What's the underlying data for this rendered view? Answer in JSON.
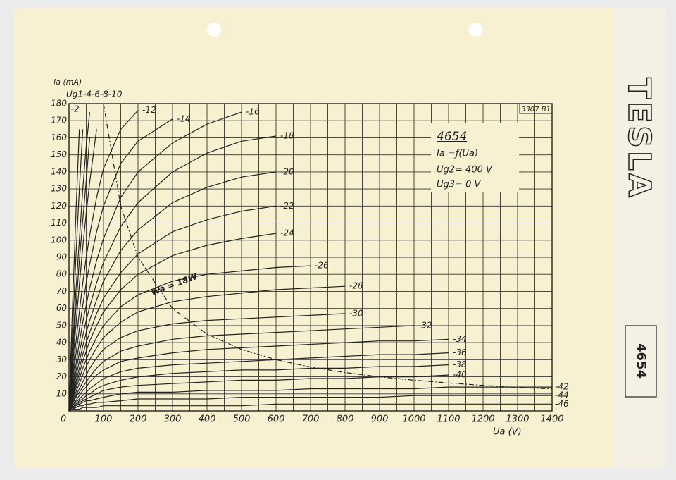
{
  "chart_data": {
    "type": "line",
    "y_label": "Ia (mA)",
    "x_label": "Ua (V)",
    "group_label": "Ug1-4-6-8-10",
    "box": {
      "title": "4654",
      "line1": "Ia =ƒ(Ua)",
      "line2": "Ug2= 400 V",
      "line3": "Ug3= 0 V"
    },
    "code": "3307 B1",
    "x": [
      0,
      10,
      20,
      30,
      40,
      50,
      60,
      80,
      100,
      150,
      200,
      300,
      400,
      500,
      600,
      700,
      800,
      900,
      1000,
      1100,
      1200,
      1300,
      1400
    ],
    "xlim": [
      0,
      1400
    ],
    "ylim": [
      0,
      180
    ],
    "xticks": [
      0,
      100,
      200,
      300,
      400,
      500,
      600,
      700,
      800,
      900,
      1000,
      1100,
      1200,
      1300,
      1400
    ],
    "xgrid_minor": [
      50,
      150,
      250,
      350,
      450,
      550,
      650,
      750,
      850,
      950,
      1050,
      1150,
      1250,
      1350
    ],
    "yticks": [
      10,
      20,
      30,
      40,
      50,
      60,
      70,
      80,
      90,
      100,
      110,
      120,
      130,
      140,
      150,
      160,
      170,
      180
    ],
    "grid": true,
    "color": "#222",
    "series": [
      {
        "name": "-2",
        "values": [
          0,
          60,
          115,
          165,
          null,
          null,
          null,
          null,
          null,
          null,
          null,
          null,
          null,
          null,
          null,
          null,
          null,
          null,
          null,
          null,
          null,
          null,
          null
        ]
      },
      {
        "values": [
          0,
          45,
          90,
          130,
          165,
          null,
          null,
          null,
          null,
          null,
          null,
          null,
          null,
          null,
          null,
          null,
          null,
          null,
          null,
          null,
          null,
          null,
          null
        ]
      },
      {
        "values": [
          0,
          35,
          70,
          100,
          130,
          155,
          175,
          null,
          null,
          null,
          null,
          null,
          null,
          null,
          null,
          null,
          null,
          null,
          null,
          null,
          null,
          null,
          null
        ]
      },
      {
        "values": [
          0,
          30,
          60,
          88,
          112,
          135,
          160,
          null,
          null,
          null,
          null,
          null,
          null,
          null,
          null,
          null,
          null,
          null,
          null,
          null,
          null,
          null,
          null
        ]
      },
      {
        "values": [
          0,
          25,
          50,
          74,
          96,
          116,
          134,
          165,
          null,
          null,
          null,
          null,
          null,
          null,
          null,
          null,
          null,
          null,
          null,
          null,
          null,
          null,
          null
        ]
      },
      {
        "name": "-12",
        "values": [
          0,
          20,
          40,
          58,
          75,
          90,
          103,
          125,
          142,
          165,
          176,
          null,
          null,
          null,
          null,
          null,
          null,
          null,
          null,
          null,
          null,
          null,
          null
        ]
      },
      {
        "name": "-14",
        "values": [
          0,
          17,
          33,
          48,
          62,
          75,
          86,
          105,
          120,
          145,
          158,
          171,
          null,
          null,
          null,
          null,
          null,
          null,
          null,
          null,
          null,
          null,
          null
        ]
      },
      {
        "name": "-16",
        "values": [
          0,
          14,
          27,
          40,
          52,
          62,
          72,
          88,
          101,
          125,
          140,
          157,
          168,
          175,
          null,
          null,
          null,
          null,
          null,
          null,
          null,
          null,
          null
        ]
      },
      {
        "name": "-18",
        "values": [
          0,
          12,
          23,
          34,
          44,
          53,
          61,
          75,
          87,
          108,
          122,
          140,
          151,
          158,
          161,
          null,
          null,
          null,
          null,
          null,
          null,
          null,
          null
        ]
      },
      {
        "name": "-20",
        "values": [
          0,
          10,
          20,
          29,
          38,
          46,
          53,
          65,
          76,
          94,
          106,
          122,
          131,
          137,
          140,
          null,
          null,
          null,
          null,
          null,
          null,
          null,
          null
        ]
      },
      {
        "name": "-22",
        "values": [
          0,
          9,
          17,
          25,
          33,
          40,
          46,
          57,
          66,
          81,
          92,
          105,
          112,
          117,
          120,
          null,
          null,
          null,
          null,
          null,
          null,
          null,
          null
        ]
      },
      {
        "name": "-24",
        "values": [
          0,
          8,
          15,
          22,
          29,
          35,
          41,
          50,
          58,
          71,
          80,
          91,
          97,
          101,
          104,
          null,
          null,
          null,
          null,
          null,
          null,
          null,
          null
        ]
      },
      {
        "name": "-26",
        "values": [
          0,
          7,
          13,
          19,
          25,
          30,
          35,
          43,
          50,
          61,
          68,
          76,
          80,
          82,
          84,
          85,
          null,
          null,
          null,
          null,
          null,
          null,
          null
        ]
      },
      {
        "name": "-28",
        "values": [
          0,
          6,
          11,
          16,
          21,
          26,
          30,
          37,
          43,
          52,
          58,
          64,
          67,
          69,
          71,
          72,
          73,
          null,
          null,
          null,
          null,
          null,
          null
        ]
      },
      {
        "name": "-30",
        "values": [
          0,
          5,
          9,
          13,
          17,
          21,
          25,
          31,
          36,
          43,
          47,
          51,
          53,
          54,
          55,
          56,
          57,
          null,
          null,
          null,
          null,
          null,
          null
        ]
      },
      {
        "name": "-32",
        "values": [
          0,
          4,
          8,
          11,
          14,
          17,
          20,
          25,
          29,
          35,
          38,
          42,
          44,
          45,
          46,
          47,
          48,
          49,
          50,
          null,
          null,
          null,
          null
        ]
      },
      {
        "name": "-34",
        "values": [
          0,
          3,
          6,
          9,
          12,
          14,
          17,
          21,
          24,
          29,
          31,
          34,
          36,
          37,
          38,
          39,
          40,
          41,
          41,
          42,
          null,
          null,
          null
        ]
      },
      {
        "name": "-36",
        "values": [
          0,
          3,
          5,
          7,
          9,
          11,
          13,
          16,
          19,
          23,
          25,
          27,
          28,
          29,
          30,
          31,
          32,
          33,
          33,
          34,
          null,
          null,
          null
        ]
      },
      {
        "name": "-38",
        "values": [
          0,
          2,
          4,
          6,
          7,
          9,
          10,
          13,
          15,
          18,
          20,
          22,
          23,
          24,
          24,
          25,
          25,
          26,
          26,
          27,
          null,
          null,
          null
        ]
      },
      {
        "name": "-40",
        "values": [
          0,
          2,
          3,
          5,
          6,
          7,
          8,
          10,
          12,
          14,
          15,
          16,
          17,
          18,
          18,
          19,
          19,
          20,
          20,
          21,
          null,
          null,
          null
        ]
      },
      {
        "name": "-42",
        "values": [
          0,
          1,
          3,
          4,
          5,
          6,
          6,
          7,
          8,
          10,
          11,
          11,
          12,
          12,
          12,
          13,
          13,
          13,
          13,
          14,
          14,
          14,
          14
        ]
      },
      {
        "name": "-44",
        "values": [
          0,
          1,
          2,
          3,
          3,
          4,
          4,
          5,
          5,
          6,
          7,
          7,
          7,
          8,
          8,
          8,
          8,
          8,
          9,
          9,
          9,
          9,
          9
        ]
      },
      {
        "name": "-46",
        "values": [
          0,
          1,
          1,
          1,
          2,
          2,
          2,
          2,
          3,
          3,
          3,
          3,
          3,
          3,
          4,
          4,
          4,
          4,
          4,
          4,
          4,
          4,
          4
        ]
      },
      {
        "name": "Wa = 18W",
        "style": "dash-dot",
        "values": [
          null,
          null,
          null,
          null,
          null,
          null,
          null,
          null,
          180,
          120,
          90,
          60,
          45,
          36,
          30,
          25.7,
          22.5,
          20,
          18,
          16.4,
          15,
          13.8,
          12.9
        ]
      }
    ]
  },
  "sheet": {
    "brand": "TESLA",
    "side_label": "4654"
  }
}
